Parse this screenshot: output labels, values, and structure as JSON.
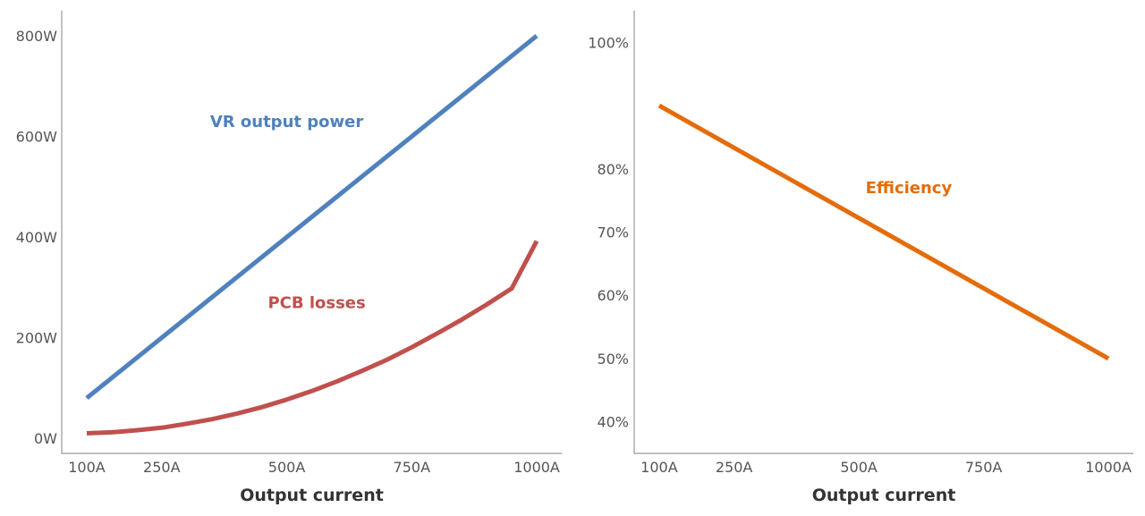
{
  "chart_data": [
    {
      "type": "line",
      "xlabel": "Output current",
      "ylabel": "",
      "x_ticks": [
        {
          "value": 100,
          "label": "100A"
        },
        {
          "value": 250,
          "label": "250A"
        },
        {
          "value": 500,
          "label": "500A"
        },
        {
          "value": 750,
          "label": "750A"
        },
        {
          "value": 1000,
          "label": "1000A"
        }
      ],
      "y_ticks": [
        {
          "value": 0,
          "label": "0W"
        },
        {
          "value": 200,
          "label": "200W"
        },
        {
          "value": 400,
          "label": "400W"
        },
        {
          "value": 600,
          "label": "600W"
        },
        {
          "value": 800,
          "label": "800W"
        }
      ],
      "xlim": [
        50,
        1050
      ],
      "ylim": [
        -30,
        850
      ],
      "grid": false,
      "series": [
        {
          "name": "VR output power",
          "color": "#4f81bd",
          "x": [
            100,
            1000
          ],
          "y": [
            80,
            800
          ]
        },
        {
          "name": "PCB losses",
          "color": "#c0504d",
          "x": [
            100,
            150,
            200,
            250,
            300,
            350,
            400,
            450,
            500,
            550,
            600,
            650,
            700,
            750,
            800,
            850,
            900,
            950,
            1000
          ],
          "y": [
            10,
            12,
            16,
            21,
            29,
            38,
            49,
            62,
            77,
            94,
            113,
            134,
            156,
            181,
            208,
            236,
            266,
            298,
            392
          ]
        }
      ],
      "annotations": [
        {
          "text": "VR output power",
          "x": 500,
          "y": 630
        },
        {
          "text": "PCB losses",
          "x": 560,
          "y": 270
        }
      ]
    },
    {
      "type": "line",
      "xlabel": "Output current",
      "ylabel": "",
      "x_ticks": [
        {
          "value": 100,
          "label": "100A"
        },
        {
          "value": 250,
          "label": "250A"
        },
        {
          "value": 500,
          "label": "500A"
        },
        {
          "value": 750,
          "label": "750A"
        },
        {
          "value": 1000,
          "label": "1000A"
        }
      ],
      "y_ticks": [
        {
          "value": 40,
          "label": "40%"
        },
        {
          "value": 50,
          "label": "50%"
        },
        {
          "value": 60,
          "label": "60%"
        },
        {
          "value": 70,
          "label": "70%"
        },
        {
          "value": 80,
          "label": "80%"
        },
        {
          "value": 100,
          "label": "100%"
        }
      ],
      "xlim": [
        50,
        1050
      ],
      "ylim": [
        35,
        105
      ],
      "grid": false,
      "series": [
        {
          "name": "Efficiency",
          "color": "#e46c0a",
          "x": [
            100,
            1000
          ],
          "y": [
            90,
            50
          ]
        }
      ],
      "annotations": [
        {
          "text": "Efficiency",
          "x": 600,
          "y": 77
        }
      ]
    }
  ]
}
